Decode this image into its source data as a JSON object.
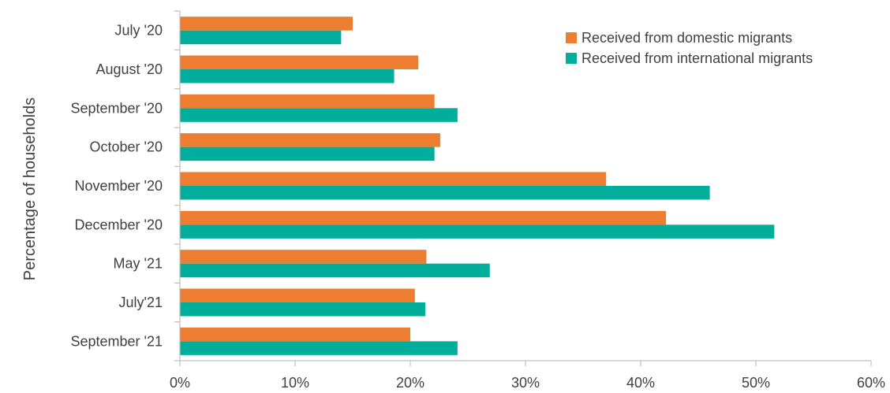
{
  "chart_data": {
    "type": "bar",
    "orientation": "horizontal",
    "categories": [
      "July '20",
      "August '20",
      "September '20",
      "October '20",
      "November '20",
      "December '20",
      "May '21",
      "July'21",
      "September '21"
    ],
    "series": [
      {
        "name": "Received from domestic migrants",
        "color": "#ED7D31",
        "values": [
          15.0,
          20.7,
          22.1,
          22.6,
          37.0,
          42.2,
          21.4,
          20.4,
          20.0
        ]
      },
      {
        "name": "Received from international migrants",
        "color": "#00AE9B",
        "values": [
          14.0,
          18.6,
          24.1,
          22.1,
          46.0,
          51.6,
          26.9,
          21.3,
          24.1
        ]
      }
    ],
    "ylabel": "Percentage of households",
    "xlim": [
      0,
      60
    ],
    "xticks": [
      "0%",
      "10%",
      "20%",
      "30%",
      "40%",
      "50%",
      "60%"
    ],
    "grid": false,
    "legend_position": "top-right"
  }
}
